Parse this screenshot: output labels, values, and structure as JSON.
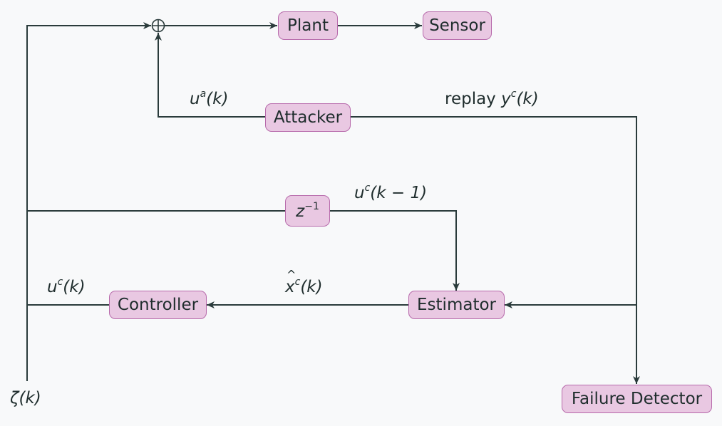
{
  "blocks": {
    "plant": "Plant",
    "sensor": "Sensor",
    "attacker": "Attacker",
    "delay": "z",
    "delay_exp": "−1",
    "estimator": "Estimator",
    "controller": "Controller",
    "failure_detector": "Failure Detector"
  },
  "labels": {
    "attack_input_base": "u",
    "attack_input_sup": "a",
    "attack_input_arg": "(k)",
    "replay_word": "replay ",
    "replay_base": "y",
    "replay_sup": "c",
    "replay_arg": "(k)",
    "delayed_input_base": "u",
    "delayed_input_sup": "c",
    "delayed_input_arg": "(k − 1)",
    "estimate_base": "x",
    "estimate_sup": "c",
    "estimate_arg": "(k)",
    "control_base": "u",
    "control_sup": "c",
    "control_arg": "(k)",
    "noise": "ζ(k)"
  },
  "colors": {
    "block_fill": "#e9c8e2",
    "block_border": "#b76aab",
    "wire": "#2a3b3b",
    "background": "#f8f9fa"
  }
}
